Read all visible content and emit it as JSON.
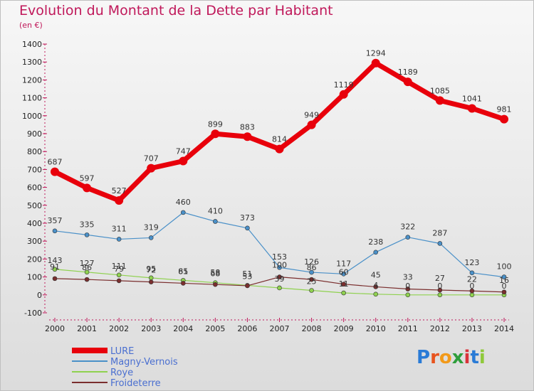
{
  "header": {
    "title": "Evolution du Montant de la Dette par Habitant",
    "unit": "(en €)"
  },
  "logo": {
    "text": "Proxiti",
    "colors": [
      "#2a7bd6",
      "#e8531d",
      "#f29a1a",
      "#2e9e3b",
      "#d9323a",
      "#2a7bd6",
      "#8fc93a"
    ]
  },
  "chart_data": {
    "type": "line",
    "title": "Evolution du Montant de la Dette par Habitant",
    "subtitle": "(en €)",
    "xlabel": "",
    "ylabel": "",
    "ylim": [
      -100,
      1400
    ],
    "yticks": [
      -100,
      0,
      100,
      200,
      300,
      400,
      500,
      600,
      700,
      800,
      900,
      1000,
      1100,
      1200,
      1300,
      1400
    ],
    "x": [
      "2000",
      "2001",
      "2002",
      "2003",
      "2004",
      "2005",
      "2006",
      "2007",
      "2008",
      "2009",
      "2010",
      "2011",
      "2012",
      "2013",
      "2014"
    ],
    "grid": false,
    "legend_position": "bottom-left",
    "series": [
      {
        "name": "LURE",
        "color": "#e8000b",
        "values": [
          687,
          597,
          527,
          707,
          747,
          899,
          883,
          814,
          949,
          1119,
          1294,
          1189,
          1085,
          1041,
          981
        ]
      },
      {
        "name": "Magny-Vernois",
        "color": "#4a90c8",
        "values": [
          357,
          335,
          311,
          319,
          460,
          410,
          373,
          153,
          126,
          117,
          238,
          322,
          287,
          123,
          100
        ]
      },
      {
        "name": "Roye",
        "color": "#8fd14f",
        "values": [
          143,
          127,
          111,
          95,
          81,
          68,
          53,
          39,
          25,
          11,
          4,
          0,
          0,
          0,
          0
        ]
      },
      {
        "name": "Froideterre",
        "color": "#7a2e2e",
        "values": [
          91,
          86,
          79,
          72,
          65,
          58,
          51,
          100,
          86,
          60,
          45,
          33,
          27,
          22,
          16
        ]
      }
    ]
  }
}
